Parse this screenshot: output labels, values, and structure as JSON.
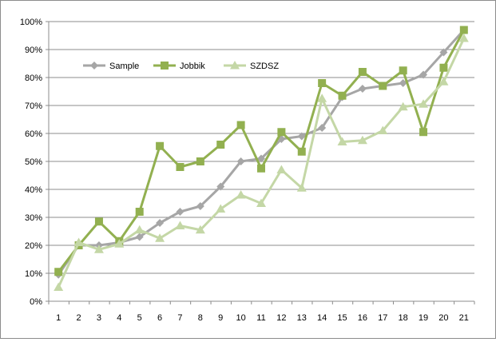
{
  "chart_data": {
    "type": "line",
    "title": "",
    "xlabel": "",
    "ylabel": "",
    "categories": [
      "1",
      "2",
      "3",
      "4",
      "5",
      "6",
      "7",
      "8",
      "9",
      "10",
      "11",
      "12",
      "13",
      "14",
      "15",
      "16",
      "17",
      "18",
      "19",
      "20",
      "21"
    ],
    "y_ticks": [
      "0%",
      "10%",
      "20%",
      "30%",
      "40%",
      "50%",
      "60%",
      "70%",
      "80%",
      "90%",
      "100%"
    ],
    "ylim": [
      0,
      100
    ],
    "grid": "horizontal",
    "legend_position": "top-left",
    "series": [
      {
        "name": "Sample",
        "color": "#a6a6a6",
        "marker": "diamond",
        "values": [
          9.5,
          20,
          20,
          21,
          23,
          28,
          32,
          34,
          41,
          50,
          51,
          58,
          59,
          62,
          73,
          76,
          77,
          78,
          81,
          89,
          97
        ]
      },
      {
        "name": "Jobbik",
        "color": "#92b050",
        "marker": "square",
        "values": [
          10.5,
          20,
          28.5,
          21.5,
          32,
          55.5,
          48,
          50,
          56,
          63,
          47.5,
          60.5,
          53.5,
          78,
          73.5,
          82,
          77,
          82.5,
          60.5,
          83.5,
          97
        ]
      },
      {
        "name": "SZDSZ",
        "color": "#c4d7a6",
        "marker": "triangle",
        "values": [
          5,
          21,
          18.5,
          20.5,
          25.5,
          22.5,
          27,
          25.5,
          33,
          38,
          35,
          47,
          40.5,
          72.5,
          57,
          57.5,
          61,
          69.5,
          70.5,
          78.5,
          94
        ]
      }
    ]
  }
}
